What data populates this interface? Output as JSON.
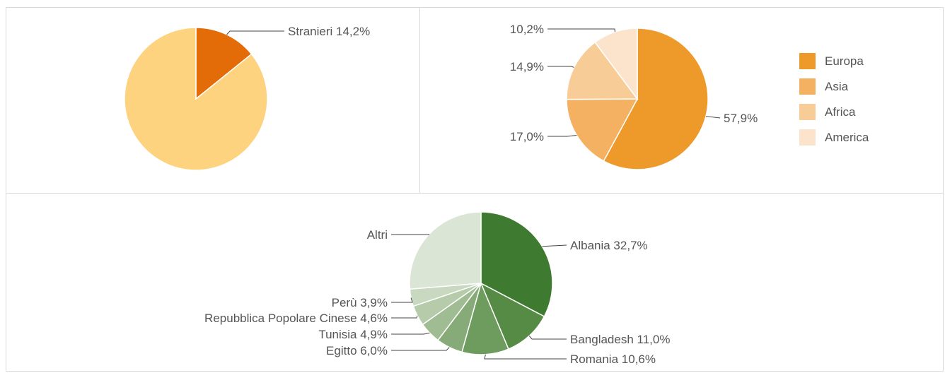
{
  "chart_data": [
    {
      "type": "pie",
      "title": "",
      "slices": [
        {
          "label": "Stranieri",
          "value": 14.2,
          "display": "Stranieri 14,2%",
          "color": "#e36c09",
          "labeled": true
        },
        {
          "label": "",
          "value": 85.8,
          "display": "",
          "color": "#fdd37f",
          "labeled": false
        }
      ]
    },
    {
      "type": "pie",
      "title": "",
      "legend": "right",
      "slices": [
        {
          "label": "Europa",
          "value": 57.9,
          "display": "57,9%",
          "color": "#ee9a2b",
          "labeled": true
        },
        {
          "label": "Asia",
          "value": 17.0,
          "display": "17,0%",
          "color": "#f3b161",
          "labeled": true
        },
        {
          "label": "Africa",
          "value": 14.9,
          "display": "14,9%",
          "color": "#f8cc97",
          "labeled": true
        },
        {
          "label": "America",
          "value": 10.2,
          "display": "10,2%",
          "color": "#fbe4cb",
          "labeled": true
        }
      ]
    },
    {
      "type": "pie",
      "title": "",
      "slices": [
        {
          "label": "Albania",
          "value": 32.7,
          "display": "Albania 32,7%",
          "color": "#3e7a2f"
        },
        {
          "label": "Bangladesh",
          "value": 11.0,
          "display": "Bangladesh 11,0%",
          "color": "#568b45"
        },
        {
          "label": "Romania",
          "value": 10.6,
          "display": "Romania 10,6%",
          "color": "#6e9b5e"
        },
        {
          "label": "Egitto",
          "value": 6.0,
          "display": "Egitto 6,0%",
          "color": "#87ab78"
        },
        {
          "label": "Tunisia",
          "value": 4.9,
          "display": "Tunisia 4,9%",
          "color": "#a0bc93"
        },
        {
          "label": "Repubblica Popolare Cinese",
          "value": 4.6,
          "display": "Repubblica Popolare Cinese 4,6%",
          "color": "#b5cbaa"
        },
        {
          "label": "Perù",
          "value": 3.9,
          "display": "Perù 3,9%",
          "color": "#c9d8c0"
        },
        {
          "label": "Altri",
          "value": 26.3,
          "display": "Altri",
          "color": "#dbe5d5"
        }
      ]
    }
  ]
}
